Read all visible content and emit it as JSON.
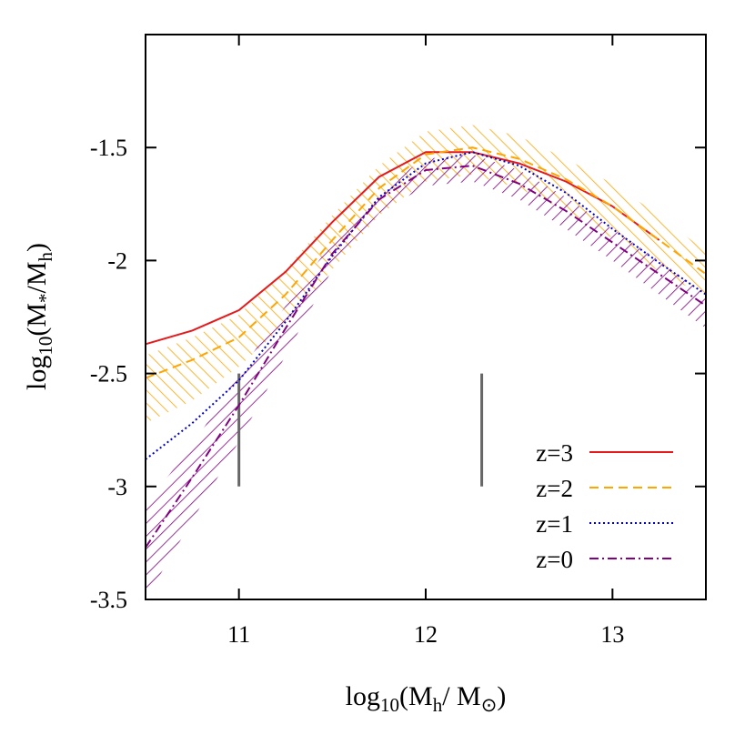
{
  "chart_data": {
    "type": "line",
    "xlim": [
      10.5,
      13.5
    ],
    "ylim": [
      -3.5,
      -1.0
    ],
    "x_ticks": [
      11,
      12,
      13
    ],
    "x_tick_labels": [
      "11",
      "12",
      "13"
    ],
    "y_ticks": [
      -3.5,
      -3,
      -2.5,
      -2,
      -1.5
    ],
    "y_tick_labels": [
      "-3.5",
      "-3",
      "-2.5",
      "-2",
      "-1.5"
    ],
    "xlabel": {
      "base": "log",
      "sub1": "10",
      "mid": "(M",
      "sub2": "h",
      "mid2": "/ M",
      "sub3": "⊙",
      "end": ")"
    },
    "ylabel": {
      "base": "log",
      "sub1": "10",
      "mid": "(M",
      "sub2": "*",
      "mid2": "/M",
      "sub3": "h",
      "end": ")"
    },
    "legend": [
      "z=3",
      "z=2",
      "z=1",
      "z=0"
    ],
    "colors": {
      "z3": "#e41a1c",
      "z2": "#ffa500",
      "z1": "#0000cc",
      "z0": "#800080",
      "marker": "#666666"
    },
    "series": [
      {
        "name": "z=3",
        "style": "solid",
        "color": "#e41a1c",
        "x": [
          10.5,
          10.75,
          11.0,
          11.25,
          11.5,
          11.75,
          12.0,
          12.25,
          12.5,
          12.75,
          13.0,
          13.25
        ],
        "y": [
          -2.37,
          -2.31,
          -2.22,
          -2.05,
          -1.83,
          -1.63,
          -1.52,
          -1.52,
          -1.57,
          -1.65,
          -1.76,
          -1.91
        ]
      },
      {
        "name": "z=2",
        "style": "dashed",
        "color": "#ffa500",
        "x": [
          10.5,
          10.75,
          11.0,
          11.25,
          11.5,
          11.75,
          12.0,
          12.25,
          12.5,
          12.75,
          13.0,
          13.25,
          13.5
        ],
        "y": [
          -2.52,
          -2.44,
          -2.34,
          -2.15,
          -1.91,
          -1.68,
          -1.53,
          -1.5,
          -1.55,
          -1.64,
          -1.76,
          -1.91,
          -2.06
        ]
      },
      {
        "name": "z=1",
        "style": "dotted",
        "color": "#0000cc",
        "x": [
          10.5,
          10.75,
          11.0,
          11.25,
          11.5,
          11.75,
          12.0,
          12.25,
          12.5,
          12.75,
          13.0,
          13.25,
          13.5
        ],
        "y": [
          -2.88,
          -2.72,
          -2.53,
          -2.27,
          -1.98,
          -1.72,
          -1.57,
          -1.52,
          -1.58,
          -1.7,
          -1.86,
          -2.01,
          -2.15
        ]
      },
      {
        "name": "z=0",
        "style": "dashdot",
        "color": "#800080",
        "x": [
          10.5,
          10.75,
          11.0,
          11.25,
          11.5,
          11.75,
          12.0,
          12.25,
          12.5,
          12.75,
          13.0,
          13.25,
          13.5
        ],
        "y": [
          -3.27,
          -2.96,
          -2.64,
          -2.3,
          -1.97,
          -1.73,
          -1.6,
          -1.58,
          -1.66,
          -1.78,
          -1.92,
          -2.06,
          -2.2
        ]
      }
    ],
    "bands": [
      {
        "name": "z=2 band",
        "color": "#ffa500",
        "angle": -45,
        "x": [
          10.5,
          10.75,
          11.0,
          11.25,
          11.5,
          11.75,
          12.0,
          12.25,
          12.5,
          12.75,
          13.0,
          13.25,
          13.5
        ],
        "upper": [
          -2.42,
          -2.34,
          -2.24,
          -2.04,
          -1.8,
          -1.58,
          -1.43,
          -1.4,
          -1.45,
          -1.55,
          -1.66,
          -1.8,
          -1.96
        ],
        "lower": [
          -2.72,
          -2.62,
          -2.47,
          -2.28,
          -2.04,
          -1.8,
          -1.65,
          -1.62,
          -1.68,
          -1.78,
          -1.9,
          -2.05,
          -2.16
        ]
      },
      {
        "name": "z=0 band",
        "color": "#800080",
        "angle": 45,
        "x": [
          10.5,
          10.75,
          11.0,
          11.25,
          11.5,
          11.75,
          12.0,
          12.25,
          12.5,
          12.75,
          13.0,
          13.25,
          13.5
        ],
        "upper": [
          -3.08,
          -2.82,
          -2.5,
          -2.2,
          -1.92,
          -1.68,
          -1.55,
          -1.53,
          -1.6,
          -1.72,
          -1.86,
          -2.0,
          -2.15
        ],
        "lower": [
          -3.5,
          -3.15,
          -2.8,
          -2.42,
          -2.04,
          -1.79,
          -1.67,
          -1.65,
          -1.73,
          -1.86,
          -2.0,
          -2.15,
          -2.3
        ]
      }
    ],
    "markers": [
      {
        "x": 11.0,
        "y1": -3.0,
        "y2": -2.5
      },
      {
        "x": 12.3,
        "y1": -3.0,
        "y2": -2.5
      }
    ]
  }
}
